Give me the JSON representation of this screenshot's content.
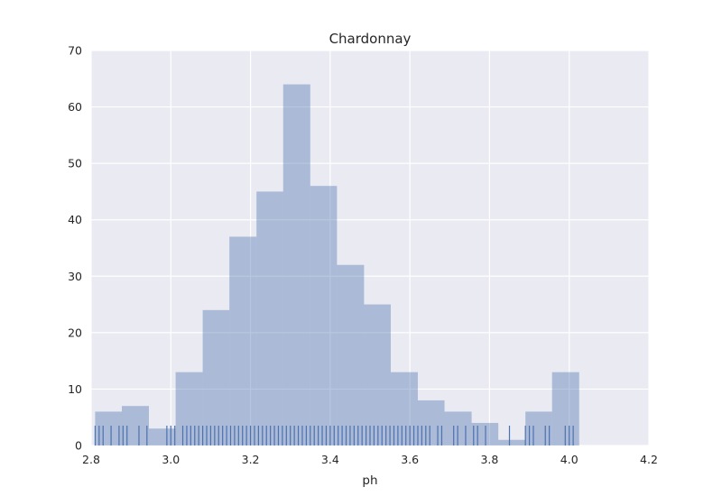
{
  "chart_data": {
    "type": "histogram",
    "title": "Chardonnay",
    "xlabel": "ph",
    "ylabel": "",
    "xlim": [
      2.8,
      4.2
    ],
    "ylim": [
      0,
      70
    ],
    "xticks": [
      "2.8",
      "3.0",
      "3.2",
      "3.4",
      "3.6",
      "3.8",
      "4.0",
      "4.2"
    ],
    "yticks": [
      "0",
      "10",
      "20",
      "30",
      "40",
      "50",
      "60",
      "70"
    ],
    "grid": true,
    "bar_color": "#4c72b0",
    "background_color": "#eaeaf2",
    "rug": true,
    "bins": [
      {
        "x0": 2.81,
        "x1": 2.877,
        "count": 6
      },
      {
        "x0": 2.877,
        "x1": 2.945,
        "count": 7
      },
      {
        "x0": 2.945,
        "x1": 3.012,
        "count": 3
      },
      {
        "x0": 3.012,
        "x1": 3.08,
        "count": 13
      },
      {
        "x0": 3.08,
        "x1": 3.147,
        "count": 24
      },
      {
        "x0": 3.147,
        "x1": 3.215,
        "count": 37
      },
      {
        "x0": 3.215,
        "x1": 3.282,
        "count": 45
      },
      {
        "x0": 3.282,
        "x1": 3.35,
        "count": 64
      },
      {
        "x0": 3.35,
        "x1": 3.417,
        "count": 46
      },
      {
        "x0": 3.417,
        "x1": 3.485,
        "count": 32
      },
      {
        "x0": 3.485,
        "x1": 3.552,
        "count": 25
      },
      {
        "x0": 3.552,
        "x1": 3.62,
        "count": 13
      },
      {
        "x0": 3.62,
        "x1": 3.687,
        "count": 8
      },
      {
        "x0": 3.687,
        "x1": 3.755,
        "count": 6
      },
      {
        "x0": 3.755,
        "x1": 3.822,
        "count": 4
      },
      {
        "x0": 3.822,
        "x1": 3.89,
        "count": 1
      },
      {
        "x0": 3.89,
        "x1": 3.957,
        "count": 6
      },
      {
        "x0": 3.957,
        "x1": 4.025,
        "count": 13
      }
    ],
    "rug_values": [
      2.81,
      2.82,
      2.83,
      2.85,
      2.87,
      2.88,
      2.89,
      2.92,
      2.94,
      2.99,
      3.0,
      3.01,
      3.03,
      3.04,
      3.05,
      3.06,
      3.07,
      3.08,
      3.09,
      3.1,
      3.11,
      3.12,
      3.13,
      3.14,
      3.15,
      3.16,
      3.17,
      3.18,
      3.19,
      3.2,
      3.21,
      3.22,
      3.23,
      3.24,
      3.25,
      3.26,
      3.27,
      3.28,
      3.29,
      3.3,
      3.31,
      3.32,
      3.33,
      3.34,
      3.35,
      3.36,
      3.37,
      3.38,
      3.39,
      3.4,
      3.41,
      3.42,
      3.43,
      3.44,
      3.45,
      3.46,
      3.47,
      3.48,
      3.49,
      3.5,
      3.51,
      3.52,
      3.53,
      3.54,
      3.55,
      3.56,
      3.57,
      3.58,
      3.59,
      3.6,
      3.61,
      3.62,
      3.63,
      3.64,
      3.65,
      3.67,
      3.68,
      3.71,
      3.72,
      3.74,
      3.76,
      3.77,
      3.79,
      3.85,
      3.89,
      3.9,
      3.91,
      3.94,
      3.95,
      3.99,
      4.0,
      4.01
    ]
  }
}
